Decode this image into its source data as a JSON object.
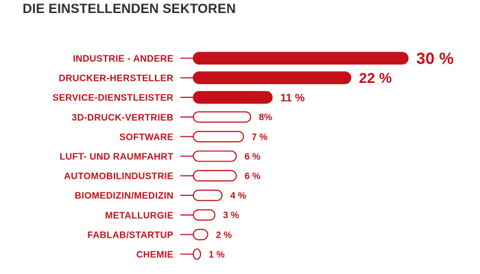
{
  "chart_data": {
    "type": "bar",
    "orientation": "horizontal",
    "title": "DIE EINSTELLENDEN SEKTOREN",
    "xlabel": "",
    "ylabel": "",
    "xlim": [
      0,
      30
    ],
    "grid": false,
    "categories": [
      "INDUSTRIE - ANDERE",
      "DRUCKER-HERSTELLER",
      "SERVICE-DIENSTLEISTER",
      "3D-DRUCK-VERTRIEB",
      "SOFTWARE",
      "LUFT- UND RAUMFAHRT",
      "AUTOMOBILINDUSTRIE",
      "BIOMEDIZIN/MEDIZIN",
      "METALLURGIE",
      "FABLAB/STARTUP",
      "CHEMIE"
    ],
    "values": [
      30,
      22,
      11,
      8,
      7,
      6,
      6,
      4,
      3,
      2,
      1
    ],
    "value_labels": [
      "30 %",
      "22 %",
      "11 %",
      "8%",
      "7 %",
      "6 %",
      "6 %",
      "4 %",
      "3 %",
      "2 %",
      "1 %"
    ],
    "highlighted_top_n": 3,
    "colors": {
      "accent": "#c4101b",
      "title": "#2f2f2f",
      "background": "#ffffff"
    }
  }
}
